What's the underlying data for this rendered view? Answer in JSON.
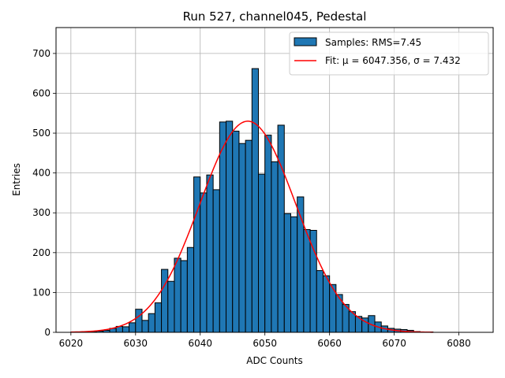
{
  "chart_data": {
    "type": "bar",
    "title": "Run 527, channel045, Pedestal",
    "xlabel": "ADC Counts",
    "ylabel": "Entries",
    "xlim": [
      6017.7,
      6085.3
    ],
    "ylim": [
      0,
      765
    ],
    "grid": true,
    "legend_position": "top-right",
    "x_ticks": [
      6020,
      6030,
      6040,
      6050,
      6060,
      6070,
      6080
    ],
    "y_ticks": [
      0,
      100,
      200,
      300,
      400,
      500,
      600,
      700
    ],
    "bin_width": 1,
    "bins_start": 6020,
    "histogram_values": [
      1,
      0,
      1,
      2,
      3,
      5,
      10,
      15,
      14,
      24,
      58,
      30,
      47,
      74,
      158,
      128,
      186,
      180,
      213,
      390,
      350,
      395,
      358,
      528,
      530,
      505,
      474,
      482,
      662,
      397,
      495,
      428,
      520,
      298,
      290,
      340,
      258,
      256,
      155,
      142,
      120,
      95,
      70,
      52,
      40,
      36,
      42,
      26,
      16,
      10,
      8,
      7,
      5,
      2,
      1,
      1,
      0
    ],
    "series": [
      {
        "name": "Samples: RMS=7.45",
        "kind": "histogram",
        "color": "#1f77b4"
      },
      {
        "name": "Fit: μ = 6047.356, σ = 7.432",
        "kind": "line",
        "color": "#ff0000",
        "mu": 6047.356,
        "sigma": 7.432,
        "peak": 530,
        "range": [
          6020,
          6076
        ]
      }
    ]
  }
}
